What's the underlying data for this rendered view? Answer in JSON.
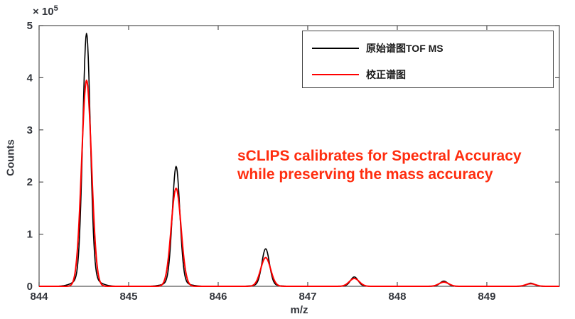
{
  "chart_data": {
    "type": "line",
    "title": "",
    "xlabel": "m/z",
    "ylabel": "Counts",
    "y_axis_multiplier": {
      "base": "× 10",
      "exponent": "5"
    },
    "xlim": [
      844,
      849.81
    ],
    "ylim": [
      0,
      5
    ],
    "x_ticks": [
      "844",
      "845",
      "846",
      "847",
      "848",
      "849"
    ],
    "x_tick_values": [
      844,
      845,
      846,
      847,
      848,
      849
    ],
    "y_ticks": [
      "0",
      "1",
      "2",
      "3",
      "4",
      "5"
    ],
    "y_tick_values": [
      0,
      1,
      2,
      3,
      4,
      5
    ],
    "grid": false,
    "legend_position": "top-right",
    "series": [
      {
        "name": "原始谱图TOF MS",
        "color": "#000000",
        "key": "original"
      },
      {
        "name": "校正谱图",
        "color": "#ff0000",
        "key": "calibrated"
      }
    ],
    "peaks_units": "counts × 10^5",
    "peaks": [
      {
        "mz": 844.53,
        "original": 4.85,
        "calibrated": 3.95
      },
      {
        "mz": 845.53,
        "original": 2.3,
        "calibrated": 1.88
      },
      {
        "mz": 846.53,
        "original": 0.72,
        "calibrated": 0.55
      },
      {
        "mz": 847.52,
        "original": 0.18,
        "calibrated": 0.15
      },
      {
        "mz": 848.52,
        "original": 0.1,
        "calibrated": 0.08
      },
      {
        "mz": 849.49,
        "original": 0.06,
        "calibrated": 0.05
      }
    ],
    "peak_shape": {
      "sigma_original": 0.042,
      "sigma_calibrated": 0.055,
      "tail_sigma": 0.11,
      "tail_fraction": 0.04
    }
  },
  "annotation": {
    "line1": "sCLIPS calibrates for Spectral Accuracy",
    "line2": "while preserving the mass accuracy",
    "color": "#ff2d0f"
  },
  "style_colors": {
    "frame": "#505050",
    "tick_text": "#33363c",
    "original_curve": "#000000",
    "calibrated_curve": "#ff0000"
  }
}
